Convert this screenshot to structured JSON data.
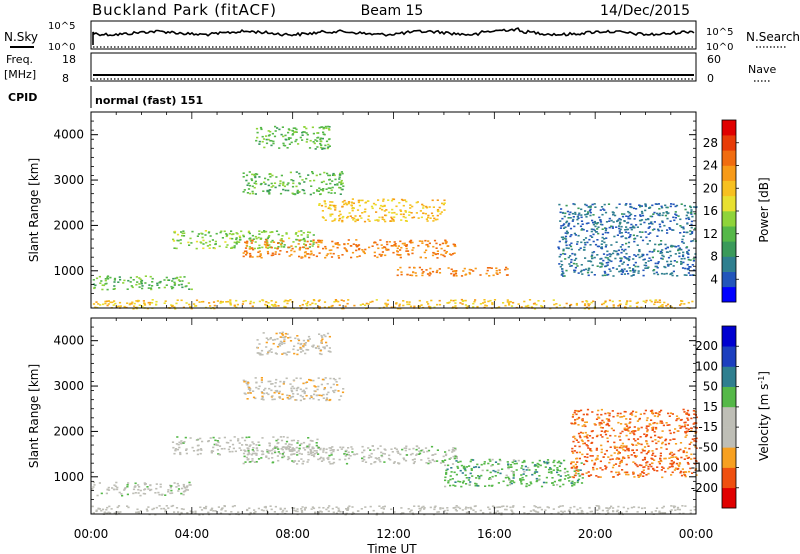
{
  "header": {
    "station": "Buckland Park (fitACF)",
    "beam": "Beam 15",
    "date": "14/Dec/2015"
  },
  "noise_panel": {
    "left_label": "N.Sky",
    "left_ticks": [
      "10^5",
      "10^0"
    ],
    "right_ticks": [
      "10^5",
      "10^0"
    ],
    "right_label": "N.Search"
  },
  "freq_panel": {
    "left_label_line1": "Freq.",
    "left_label_line2": "[MHz]",
    "left_ticks": [
      "18",
      "8"
    ],
    "right_ticks": [
      "60",
      "0"
    ],
    "right_label": "Nave"
  },
  "cpid_panel": {
    "label": "CPID",
    "program": "normal (fast) 151"
  },
  "x_axis": {
    "tick_labels": [
      "00:00",
      "04:00",
      "08:00",
      "12:00",
      "16:00",
      "20:00",
      "00:00"
    ],
    "label": "Time UT"
  },
  "chart_data": [
    {
      "type": "heatmap",
      "name": "power",
      "ylabel": "Slant Range [km]",
      "y_tick_labels": [
        "1000",
        "2000",
        "3000",
        "4000"
      ],
      "colorbar_label": "Power [dB]",
      "colorbar_ticks": [
        "4",
        "8",
        "12",
        "16",
        "20",
        "24",
        "28"
      ],
      "colorbar_range": [
        0,
        32
      ],
      "colorbar_colors": [
        "#0000ff",
        "#2255bb",
        "#2f7f8f",
        "#3a9a5a",
        "#55b848",
        "#8fd43a",
        "#e8e030",
        "#f7c020",
        "#f79a18",
        "#f06c10",
        "#e83c08",
        "#e00000"
      ],
      "x_range_hours": [
        0,
        24
      ],
      "y_range_km": [
        180,
        4500
      ],
      "features": [
        {
          "t0": 0.0,
          "t1": 4.0,
          "r0": 600,
          "r1": 900,
          "value": 12
        },
        {
          "t0": 3.2,
          "t1": 9.0,
          "r0": 1500,
          "r1": 1900,
          "value": 14
        },
        {
          "t0": 6.0,
          "t1": 14.5,
          "r0": 1300,
          "r1": 1700,
          "value": 24
        },
        {
          "t0": 6.0,
          "t1": 10.0,
          "r0": 2700,
          "r1": 3200,
          "value": 12
        },
        {
          "t0": 6.5,
          "t1": 9.5,
          "r0": 3700,
          "r1": 4200,
          "value": 12
        },
        {
          "t0": 9.0,
          "t1": 14.0,
          "r0": 2100,
          "r1": 2600,
          "value": 20
        },
        {
          "t0": 12.0,
          "t1": 16.5,
          "r0": 900,
          "r1": 1100,
          "value": 24
        },
        {
          "t0": 0.0,
          "t1": 24.0,
          "r0": 180,
          "r1": 380,
          "value": 20
        },
        {
          "t0": 18.5,
          "t1": 24.0,
          "r0": 900,
          "r1": 2500,
          "value": 6
        }
      ]
    },
    {
      "type": "heatmap",
      "name": "velocity",
      "ylabel": "Slant Range [km]",
      "y_tick_labels": [
        "1000",
        "2000",
        "3000",
        "4000"
      ],
      "colorbar_label": "Velocity [m s^-1]",
      "colorbar_ticks": [
        "200",
        "100",
        "50",
        "15",
        "-15",
        "-50",
        "-100",
        "-200"
      ],
      "colorbar_range": [
        -250,
        250
      ],
      "colorbar_colors": [
        "#e00000",
        "#ef5010",
        "#f7a020",
        "#bebeb6",
        "#bebeb6",
        "#55b848",
        "#2f7f8f",
        "#1c3fbf",
        "#0000d0"
      ],
      "x_range_hours": [
        0,
        24
      ],
      "y_range_km": [
        180,
        4500
      ],
      "features": [
        {
          "t0": 0.0,
          "t1": 4.0,
          "r0": 600,
          "r1": 900,
          "value": 0
        },
        {
          "t0": 3.2,
          "t1": 9.0,
          "r0": 1500,
          "r1": 1900,
          "value": 0
        },
        {
          "t0": 6.0,
          "t1": 14.5,
          "r0": 1300,
          "r1": 1700,
          "value": 0
        },
        {
          "t0": 6.0,
          "t1": 10.0,
          "r0": 2700,
          "r1": 3200,
          "value": -60
        },
        {
          "t0": 6.5,
          "t1": 9.5,
          "r0": 3700,
          "r1": 4200,
          "value": -60
        },
        {
          "t0": 14.0,
          "t1": 19.5,
          "r0": 800,
          "r1": 1400,
          "value": 60
        },
        {
          "t0": 0.0,
          "t1": 24.0,
          "r0": 180,
          "r1": 380,
          "value": -40
        },
        {
          "t0": 19.0,
          "t1": 24.0,
          "r0": 1000,
          "r1": 2500,
          "value": -150
        }
      ]
    }
  ]
}
